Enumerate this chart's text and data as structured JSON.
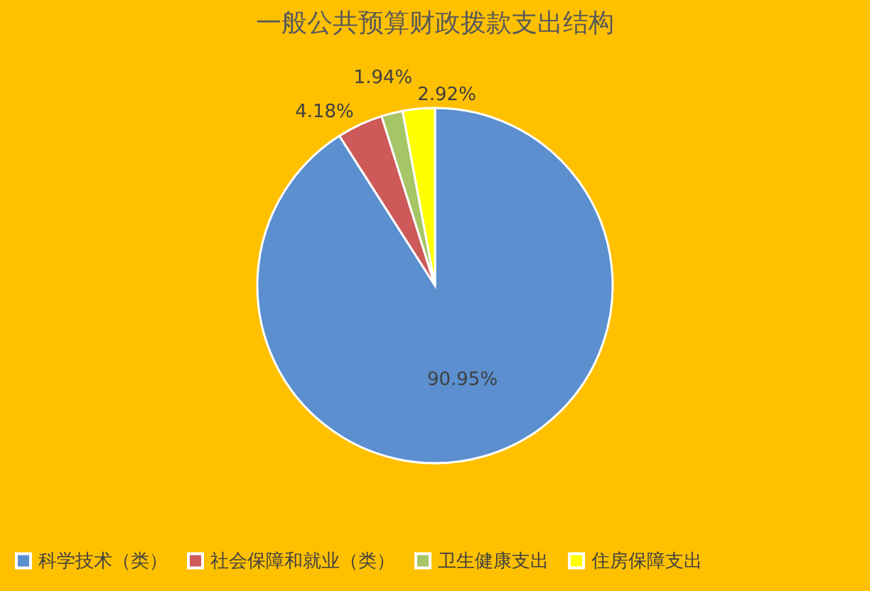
{
  "chart_data": {
    "type": "pie",
    "title": "一般公共预算财政拨款支出结构",
    "categories": [
      "科学技术（类）",
      "社会保障和就业（类）",
      "卫生健康支出",
      "住房保障支出"
    ],
    "values": [
      90.95,
      4.18,
      1.94,
      2.92
    ],
    "colors": [
      "#5b8fcf",
      "#cd5a58",
      "#a5c566",
      "#ffff00"
    ],
    "value_labels": [
      "90.95%",
      "4.18%",
      "1.94%",
      "2.92%"
    ],
    "legend": "bottom"
  }
}
